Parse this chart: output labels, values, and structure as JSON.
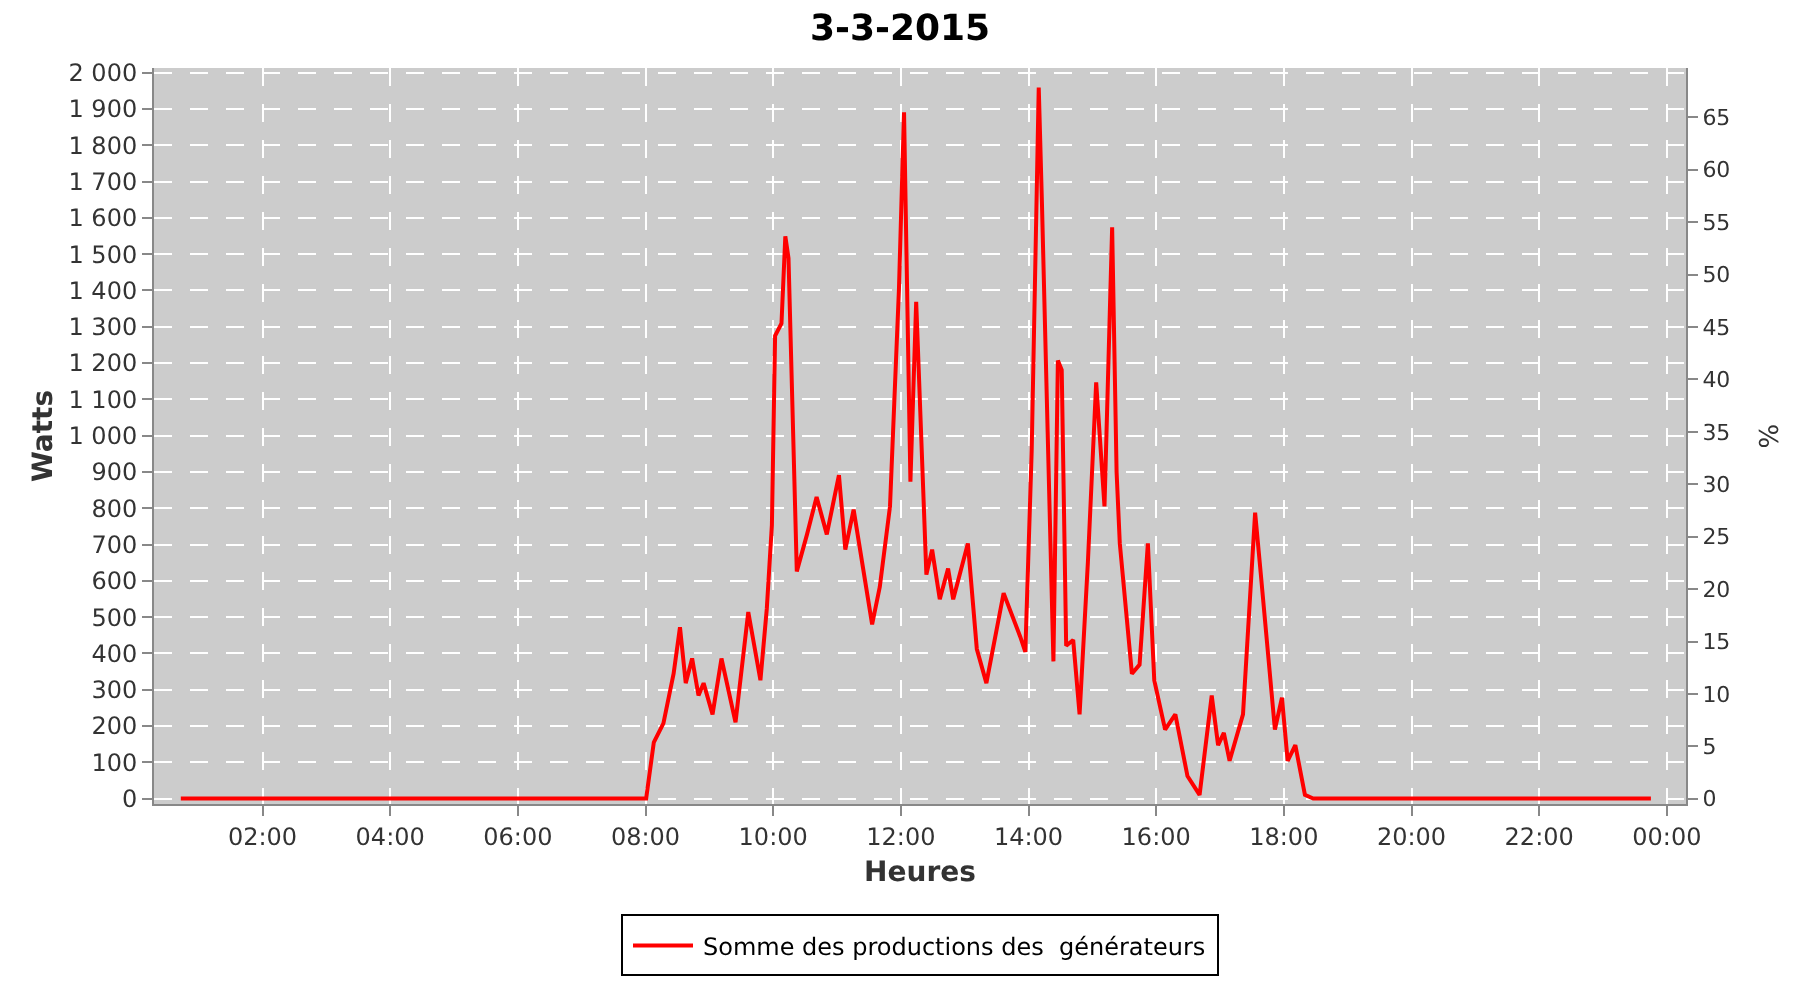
{
  "chart_data": {
    "type": "line",
    "title": "3-3-2015",
    "xlabel": "Heures",
    "ylabel": "Watts",
    "y2label": "%",
    "x": [
      0.72,
      7.92,
      8.01,
      8.13,
      8.28,
      8.44,
      8.54,
      8.63,
      8.73,
      8.83,
      8.91,
      9.05,
      9.19,
      9.41,
      9.61,
      9.8,
      9.9,
      9.98,
      10.03,
      10.13,
      10.19,
      10.24,
      10.37,
      10.53,
      10.68,
      10.84,
      11.03,
      11.13,
      11.26,
      11.55,
      11.67,
      11.83,
      11.97,
      12.05,
      12.15,
      12.24,
      12.4,
      12.49,
      12.61,
      12.74,
      12.82,
      13.05,
      13.19,
      13.34,
      13.61,
      13.87,
      13.95,
      14.05,
      14.16,
      14.21,
      14.3,
      14.39,
      14.46,
      14.52,
      14.59,
      14.7,
      14.8,
      14.93,
      15.06,
      15.19,
      15.31,
      15.38,
      15.43,
      15.62,
      15.74,
      15.87,
      15.97,
      16.14,
      16.3,
      16.49,
      16.68,
      16.87,
      16.97,
      17.06,
      17.15,
      17.36,
      17.55,
      17.64,
      17.86,
      17.97,
      18.06,
      18.18,
      18.33,
      18.46,
      23.75
    ],
    "series": [
      {
        "name": "Somme des productions des  générateurs",
        "color": "#ff0000",
        "values": [
          0,
          0,
          0,
          155,
          207,
          344,
          472,
          318,
          386,
          284,
          318,
          232,
          386,
          210,
          514,
          326,
          523,
          754,
          1275,
          1309,
          1549,
          1489,
          626,
          728,
          831,
          728,
          891,
          686,
          796,
          480,
          583,
          805,
          1403,
          1891,
          873,
          1369,
          617,
          686,
          549,
          634,
          549,
          703,
          412,
          318,
          566,
          446,
          404,
          959,
          1959,
          1643,
          1010,
          378,
          1207,
          1181,
          421,
          437,
          232,
          651,
          1147,
          805,
          1574,
          899,
          703,
          344,
          369,
          703,
          326,
          190,
          232,
          62,
          10,
          284,
          147,
          181,
          104,
          232,
          788,
          617,
          190,
          278,
          104,
          147,
          10,
          0,
          0
        ]
      }
    ],
    "xlim": [
      0.3,
      24.3
    ],
    "xticks": [
      {
        "value": 2,
        "label": "02:00"
      },
      {
        "value": 4,
        "label": "04:00"
      },
      {
        "value": 6,
        "label": "06:00"
      },
      {
        "value": 8,
        "label": "08:00"
      },
      {
        "value": 10,
        "label": "10:00"
      },
      {
        "value": 12,
        "label": "12:00"
      },
      {
        "value": 14,
        "label": "14:00"
      },
      {
        "value": 16,
        "label": "16:00"
      },
      {
        "value": 18,
        "label": "18:00"
      },
      {
        "value": 20,
        "label": "20:00"
      },
      {
        "value": 22,
        "label": "22:00"
      },
      {
        "value": 24,
        "label": "00:00"
      }
    ],
    "ylim": [
      -15,
      2013
    ],
    "yticks": [
      {
        "value": 0,
        "label": "0"
      },
      {
        "value": 100,
        "label": "100"
      },
      {
        "value": 200,
        "label": "200"
      },
      {
        "value": 300,
        "label": "300"
      },
      {
        "value": 400,
        "label": "400"
      },
      {
        "value": 500,
        "label": "500"
      },
      {
        "value": 600,
        "label": "600"
      },
      {
        "value": 700,
        "label": "700"
      },
      {
        "value": 800,
        "label": "800"
      },
      {
        "value": 900,
        "label": "900"
      },
      {
        "value": 1000,
        "label": "1 000"
      },
      {
        "value": 1100,
        "label": "1 100"
      },
      {
        "value": 1200,
        "label": "1 200"
      },
      {
        "value": 1300,
        "label": "1 300"
      },
      {
        "value": 1400,
        "label": "1 400"
      },
      {
        "value": 1500,
        "label": "1 500"
      },
      {
        "value": 1600,
        "label": "1 600"
      },
      {
        "value": 1700,
        "label": "1 700"
      },
      {
        "value": 1800,
        "label": "1 800"
      },
      {
        "value": 1900,
        "label": "1 900"
      },
      {
        "value": 2000,
        "label": "2 000"
      }
    ],
    "y2lim": [
      -0.5,
      69.7
    ],
    "y2ticks": [
      0,
      5,
      10,
      15,
      20,
      25,
      30,
      35,
      40,
      45,
      50,
      55,
      60,
      65
    ],
    "grid": true,
    "legend": "bottom",
    "marker": "none",
    "line_style": "solid"
  }
}
